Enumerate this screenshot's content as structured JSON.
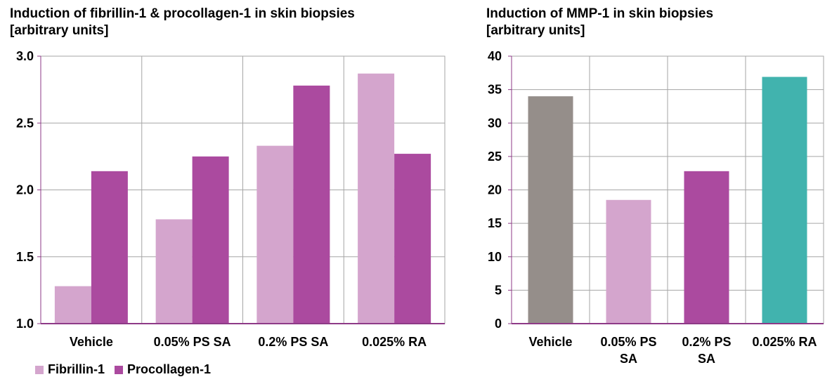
{
  "chart_data": [
    {
      "type": "bar",
      "title": "Induction of fibrillin-1 & procollagen-1 in skin biopsies",
      "subtitle": "[arbitrary units]",
      "categories": [
        "Vehicle",
        "0.05% PS SA",
        "0.2% PS SA",
        "0.025% RA"
      ],
      "series": [
        {
          "name": "Fibrillin-1",
          "color": "#d4a5cd",
          "values": [
            1.28,
            1.78,
            2.33,
            2.87
          ]
        },
        {
          "name": "Procollagen-1",
          "color": "#ab4a9f",
          "values": [
            2.14,
            2.25,
            2.78,
            2.27
          ]
        }
      ],
      "ylim": [
        1.0,
        3.0
      ],
      "yticks": [
        "1.0",
        "1.5",
        "2.0",
        "2.5",
        "3.0"
      ],
      "ytick_values": [
        1.0,
        1.5,
        2.0,
        2.5,
        3.0
      ],
      "grid": true,
      "legend": "bottom-left"
    },
    {
      "type": "bar",
      "title": "Induction of MMP-1 in skin biopsies",
      "subtitle": "[arbitrary units]",
      "categories": [
        "Vehicle",
        "0.05% PS SA",
        "0.2% PS SA",
        "0.025% RA"
      ],
      "category_lines": [
        [
          "Vehicle"
        ],
        [
          "0.05% PS",
          "SA"
        ],
        [
          "0.2% PS",
          "SA"
        ],
        [
          "0.025% RA"
        ]
      ],
      "values": [
        34.0,
        18.5,
        22.8,
        36.9
      ],
      "colors": [
        "#958e8a",
        "#d4a5cd",
        "#ab4a9f",
        "#41b3ae"
      ],
      "ylim": [
        0,
        40
      ],
      "yticks": [
        "0",
        "5",
        "10",
        "15",
        "20",
        "25",
        "30",
        "35",
        "40"
      ],
      "ytick_values": [
        0,
        5,
        10,
        15,
        20,
        25,
        30,
        35,
        40
      ],
      "grid": true
    }
  ]
}
